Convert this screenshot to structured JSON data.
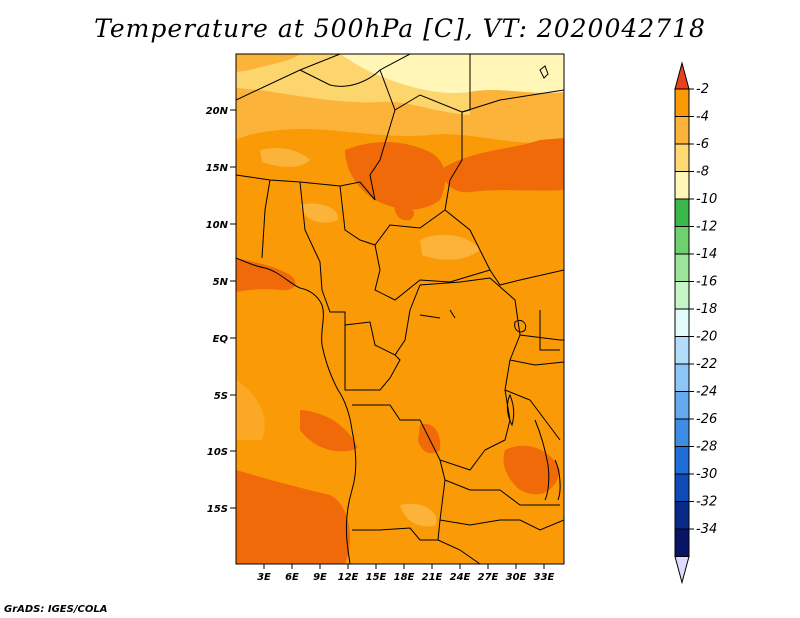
{
  "title": "Temperature at 500hPa [C], VT: 2020042718",
  "credit": "GrADS: IGES/COLA",
  "map": {
    "lat_labels": [
      "20N",
      "15N",
      "10N",
      "5N",
      "EQ",
      "5S",
      "10S",
      "15S"
    ],
    "lon_labels": [
      "3E",
      "6E",
      "9E",
      "12E",
      "15E",
      "18E",
      "21E",
      "24E",
      "27E",
      "30E",
      "33E"
    ]
  },
  "colorbar": {
    "labels": [
      "-2",
      "-4",
      "-6",
      "-8",
      "-10",
      "-12",
      "-14",
      "-16",
      "-18",
      "-20",
      "-22",
      "-24",
      "-26",
      "-28",
      "-30",
      "-32",
      "-34"
    ],
    "colors": [
      "#e8421b",
      "#f06a0a",
      "#f99a06",
      "#fbb33a",
      "#fdd873",
      "#fff6b8",
      "#3ab84a",
      "#6fd06f",
      "#9be59b",
      "#c8f5c8",
      "#e4fbfb",
      "#b2dcf9",
      "#8cc6f6",
      "#63aaf0",
      "#3d8de6",
      "#1f6dd9",
      "#0f4ab8",
      "#0a2a8a",
      "#0a1464",
      "#dcdcff"
    ]
  }
}
